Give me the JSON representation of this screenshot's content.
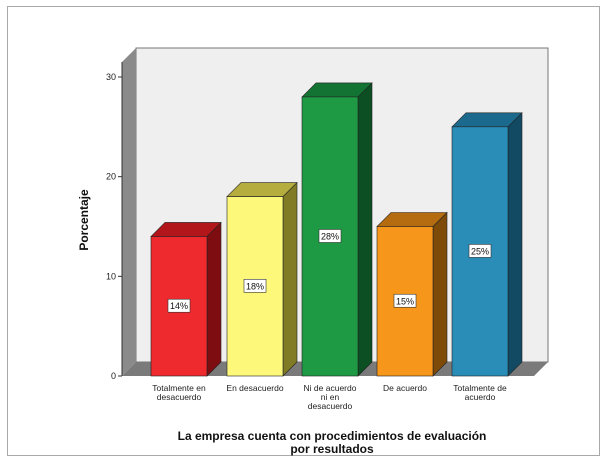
{
  "chart_data": {
    "type": "bar",
    "title": "",
    "xlabel": [
      "La empresa cuenta con procedimientos de evaluación",
      "por resultados"
    ],
    "ylabel": "Porcentaje",
    "ylim": [
      0,
      30
    ],
    "yticks": [
      "0",
      "10",
      "20",
      "30"
    ],
    "grid": false,
    "legend": "none",
    "categories": [
      [
        "Totalmente en",
        "desacuerdo"
      ],
      [
        "En desacuerdo"
      ],
      [
        "Ni de acuerdo",
        "ni en",
        "desacuerdo"
      ],
      [
        "De acuerdo"
      ],
      [
        "Totalmente de",
        "acuerdo"
      ]
    ],
    "values": [
      14,
      18,
      28,
      15,
      25
    ],
    "data_labels": [
      "14%",
      "18%",
      "28%",
      "15%",
      "25%"
    ],
    "colors": [
      {
        "front": "#ee2a2f",
        "top": "#b2161b",
        "side": "#7d0d10"
      },
      {
        "front": "#fdf77a",
        "top": "#b5ae3e",
        "side": "#827b25"
      },
      {
        "front": "#1e9a45",
        "top": "#127333",
        "side": "#0b4f22"
      },
      {
        "front": "#f6961b",
        "top": "#b56b0f",
        "side": "#7e4a08"
      },
      {
        "front": "#2a8db8",
        "top": "#1b6a8d",
        "side": "#124a63"
      }
    ],
    "wall_color": "#efefef",
    "floor_color": "#7a7a7a"
  }
}
